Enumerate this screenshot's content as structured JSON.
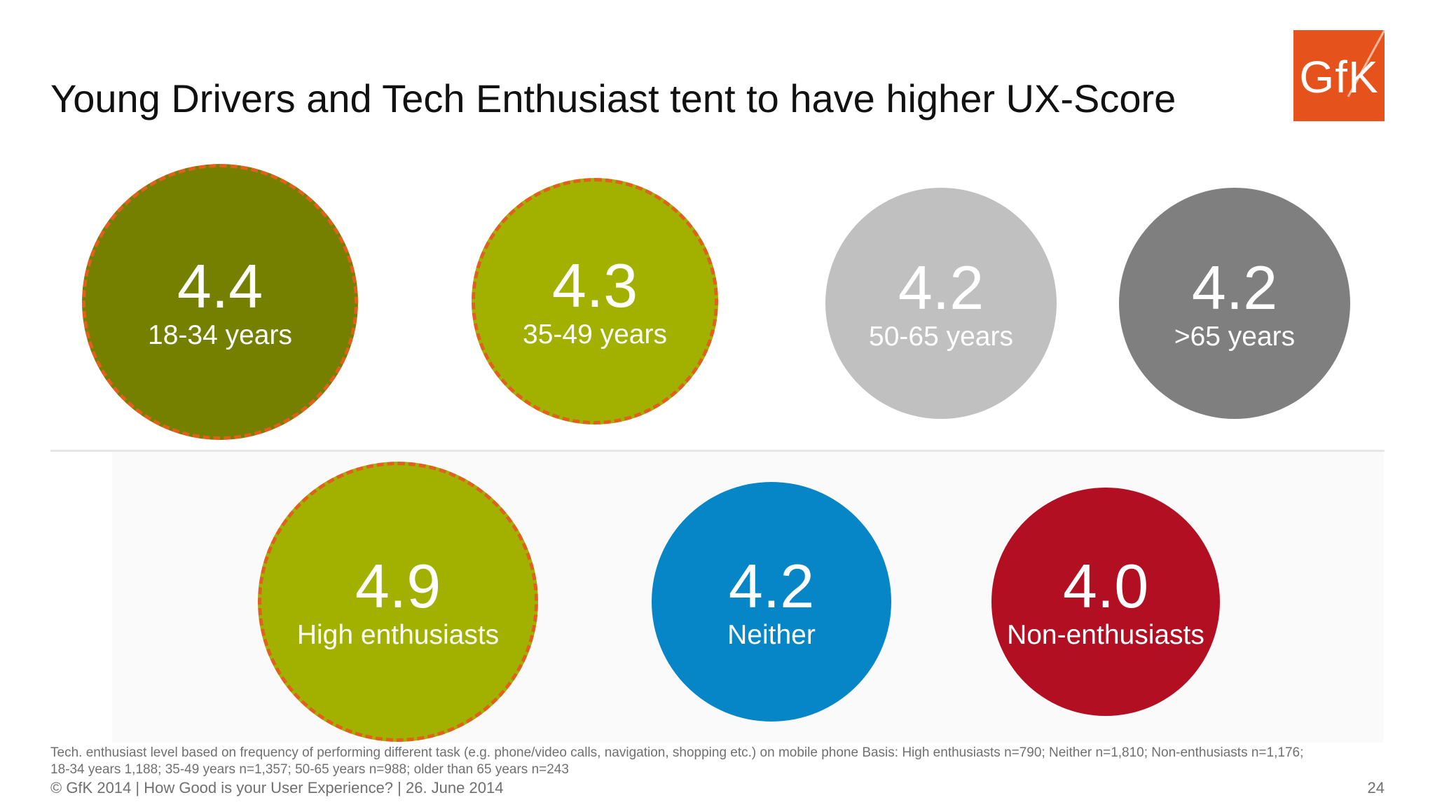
{
  "title": "Young Drivers and Tech Enthusiast tent to have higher UX-Score",
  "logo": {
    "text": "GfK",
    "color": "#e5521c"
  },
  "age_groups": [
    {
      "score": "4.4",
      "label": "18-34 years",
      "color": "#758000",
      "highlighted": true
    },
    {
      "score": "4.3",
      "label": "35-49 years",
      "color": "#a2b100",
      "highlighted": true
    },
    {
      "score": "4.2",
      "label": "50-65 years",
      "color": "#c0c0c0",
      "highlighted": false
    },
    {
      "score": "4.2",
      "label": ">65 years",
      "color": "#7f7f7f",
      "highlighted": false
    }
  ],
  "tech_groups": [
    {
      "score": "4.9",
      "label": "High enthusiasts",
      "color": "#a2b100",
      "highlighted": true
    },
    {
      "score": "4.2",
      "label": "Neither",
      "color": "#0686c6",
      "highlighted": false
    },
    {
      "score": "4.0",
      "label": "Non-enthusiasts",
      "color": "#b30f23",
      "highlighted": false
    }
  ],
  "highlight_border_color": "#e0601c",
  "footnote_line1": "Tech. enthusiast level based on frequency of performing different task (e.g. phone/video calls, navigation, shopping etc.) on mobile phone  Basis: High enthusiasts n=790; Neither n=1,810; Non-enthusiasts n=1,176;",
  "footnote_line2": "18-34 years 1,188; 35-49 years n=1,357; 50-65 years n=988; older than 65 years n=243",
  "footer": "© GfK 2014 | How Good is your User Experience? | 26. June 2014",
  "page_number": "24"
}
